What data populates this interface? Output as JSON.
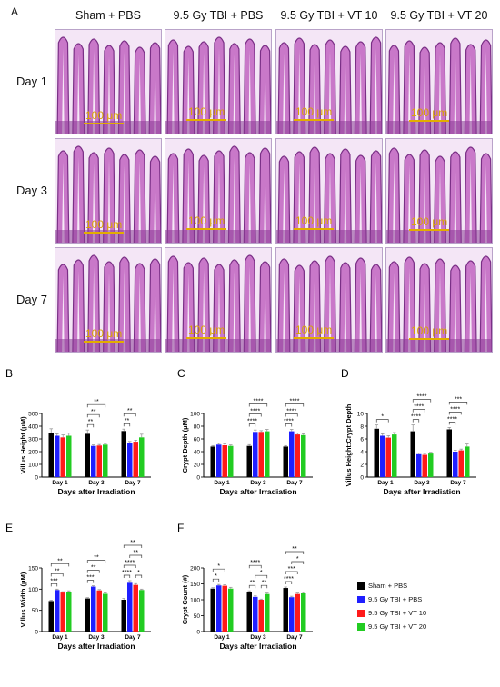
{
  "panel_a": {
    "letter": "A",
    "columns": [
      "Sham + PBS",
      "9.5 Gy TBI + PBS",
      "9.5 Gy TBI + VT 10",
      "9.5 Gy TBI + VT 20"
    ],
    "rows": [
      "Day 1",
      "Day 3",
      "Day 7"
    ],
    "scale_bar_label": "100 μm"
  },
  "legend": {
    "items": [
      {
        "label": "Sham + PBS",
        "color": "#000000"
      },
      {
        "label": "9.5 Gy TBI + PBS",
        "color": "#1f1fff"
      },
      {
        "label": "9.5 Gy TBI + VT 10",
        "color": "#ff1a1a"
      },
      {
        "label": "9.5 Gy TBI + VT 20",
        "color": "#22cc22"
      }
    ]
  },
  "chart_data": [
    {
      "letter": "B",
      "type": "bar",
      "categories": [
        "Day 1",
        "Day 3",
        "Day 7"
      ],
      "ylabel": "Villus Height (μM)",
      "xlabel": "Days after Irradiation",
      "ylim": [
        0,
        500
      ],
      "yticks": [
        0,
        100,
        200,
        300,
        400,
        500
      ],
      "values": [
        [
          345,
          325,
          312,
          325
        ],
        [
          340,
          245,
          248,
          255
        ],
        [
          362,
          270,
          278,
          312
        ]
      ],
      "errors": [
        [
          35,
          15,
          20,
          20
        ],
        [
          30,
          8,
          8,
          8
        ],
        [
          15,
          10,
          12,
          25
        ]
      ],
      "significance": [
        {
          "a": [
            1,
            0
          ],
          "b": [
            1,
            1
          ],
          "label": "**",
          "level": 0
        },
        {
          "a": [
            1,
            0
          ],
          "b": [
            1,
            2
          ],
          "label": "**",
          "level": 1
        },
        {
          "a": [
            1,
            0
          ],
          "b": [
            1,
            3
          ],
          "label": "**",
          "level": 2
        },
        {
          "a": [
            2,
            0
          ],
          "b": [
            2,
            1
          ],
          "label": "**",
          "level": 0
        },
        {
          "a": [
            2,
            0
          ],
          "b": [
            2,
            2
          ],
          "label": "**",
          "level": 1
        }
      ]
    },
    {
      "letter": "C",
      "type": "bar",
      "categories": [
        "Day 1",
        "Day 3",
        "Day 7"
      ],
      "ylabel": "Crypt Depth (μM)",
      "xlabel": "Days after Irradiation",
      "ylim": [
        0,
        100
      ],
      "yticks": [
        0,
        20,
        40,
        60,
        80,
        100
      ],
      "values": [
        [
          48,
          51,
          50,
          49
        ],
        [
          49,
          71,
          71,
          72
        ],
        [
          48,
          72,
          67,
          66
        ]
      ],
      "errors": [
        [
          1.5,
          2,
          2,
          1.5
        ],
        [
          2,
          3,
          2,
          3
        ],
        [
          1.5,
          3,
          2,
          2
        ]
      ],
      "significance": [
        {
          "a": [
            1,
            0
          ],
          "b": [
            1,
            1
          ],
          "label": "****",
          "level": 0
        },
        {
          "a": [
            1,
            0
          ],
          "b": [
            1,
            2
          ],
          "label": "****",
          "level": 1
        },
        {
          "a": [
            1,
            0
          ],
          "b": [
            1,
            3
          ],
          "label": "****",
          "level": 2
        },
        {
          "a": [
            2,
            0
          ],
          "b": [
            2,
            1
          ],
          "label": "****",
          "level": 0
        },
        {
          "a": [
            2,
            0
          ],
          "b": [
            2,
            2
          ],
          "label": "****",
          "level": 1
        },
        {
          "a": [
            2,
            0
          ],
          "b": [
            2,
            3
          ],
          "label": "****",
          "level": 2
        }
      ]
    },
    {
      "letter": "D",
      "type": "bar",
      "categories": [
        "Day 1",
        "Day 3",
        "Day 7"
      ],
      "ylabel": "Villus Height:Crypt Depth",
      "xlabel": "Days after Irradiation",
      "ylim": [
        0,
        10
      ],
      "yticks": [
        0,
        2,
        4,
        6,
        8,
        10
      ],
      "values": [
        [
          7.6,
          6.5,
          6.2,
          6.7
        ],
        [
          7.2,
          3.6,
          3.5,
          3.7
        ],
        [
          7.5,
          4.0,
          4.2,
          4.8
        ]
      ],
      "errors": [
        [
          0.6,
          0.3,
          0.3,
          0.3
        ],
        [
          1.0,
          0.2,
          0.2,
          0.2
        ],
        [
          0.3,
          0.2,
          0.2,
          0.4
        ]
      ],
      "significance": [
        {
          "a": [
            0,
            0
          ],
          "b": [
            0,
            2
          ],
          "label": "*",
          "level": 0
        },
        {
          "a": [
            1,
            0
          ],
          "b": [
            1,
            1
          ],
          "label": "****",
          "level": 0
        },
        {
          "a": [
            1,
            0
          ],
          "b": [
            1,
            2
          ],
          "label": "****",
          "level": 1
        },
        {
          "a": [
            1,
            0
          ],
          "b": [
            1,
            3
          ],
          "label": "****",
          "level": 2
        },
        {
          "a": [
            2,
            0
          ],
          "b": [
            2,
            1
          ],
          "label": "****",
          "level": 0
        },
        {
          "a": [
            2,
            0
          ],
          "b": [
            2,
            2
          ],
          "label": "****",
          "level": 1
        },
        {
          "a": [
            2,
            0
          ],
          "b": [
            2,
            3
          ],
          "label": "***",
          "level": 2
        }
      ]
    },
    {
      "letter": "E",
      "type": "bar",
      "categories": [
        "Day 1",
        "Day 3",
        "Day 7"
      ],
      "ylabel": "Villus Width (μM)",
      "xlabel": "Days after Irradiation",
      "ylim": [
        0,
        150
      ],
      "yticks": [
        0,
        50,
        100,
        150
      ],
      "values": [
        [
          72,
          98,
          92,
          93
        ],
        [
          78,
          106,
          97,
          89
        ],
        [
          75,
          115,
          110,
          98
        ]
      ],
      "errors": [
        [
          2,
          2,
          2,
          3
        ],
        [
          2,
          2,
          2,
          2
        ],
        [
          3,
          5,
          3,
          2
        ]
      ],
      "significance": [
        {
          "a": [
            0,
            0
          ],
          "b": [
            0,
            1
          ],
          "label": "***",
          "level": 0
        },
        {
          "a": [
            0,
            0
          ],
          "b": [
            0,
            2
          ],
          "label": "**",
          "level": 1
        },
        {
          "a": [
            0,
            0
          ],
          "b": [
            0,
            3
          ],
          "label": "**",
          "level": 2
        },
        {
          "a": [
            1,
            0
          ],
          "b": [
            1,
            1
          ],
          "label": "***",
          "level": 0
        },
        {
          "a": [
            1,
            0
          ],
          "b": [
            1,
            2
          ],
          "label": "**",
          "level": 1
        },
        {
          "a": [
            1,
            0
          ],
          "b": [
            1,
            3
          ],
          "label": "**",
          "level": 2
        },
        {
          "a": [
            2,
            0
          ],
          "b": [
            2,
            1
          ],
          "label": "****",
          "level": 0
        },
        {
          "a": [
            2,
            2
          ],
          "b": [
            2,
            3
          ],
          "label": "*",
          "level": 0
        },
        {
          "a": [
            2,
            0
          ],
          "b": [
            2,
            2
          ],
          "label": "****",
          "level": 1
        },
        {
          "a": [
            2,
            1
          ],
          "b": [
            2,
            3
          ],
          "label": "**",
          "level": 2
        },
        {
          "a": [
            2,
            0
          ],
          "b": [
            2,
            3
          ],
          "label": "**",
          "level": 3
        }
      ]
    },
    {
      "letter": "F",
      "type": "bar",
      "categories": [
        "Day 1",
        "Day 3",
        "Day 7"
      ],
      "ylabel": "Crypt Count (#)",
      "xlabel": "Days after Irradiation",
      "ylim": [
        0,
        200
      ],
      "yticks": [
        0,
        50,
        100,
        150,
        200
      ],
      "values": [
        [
          135,
          145,
          144,
          135
        ],
        [
          125,
          109,
          100,
          118
        ],
        [
          137,
          108,
          118,
          120
        ]
      ],
      "errors": [
        [
          3,
          3,
          3,
          4
        ],
        [
          3,
          3,
          2,
          3
        ],
        [
          3,
          3,
          3,
          3
        ]
      ],
      "significance": [
        {
          "a": [
            0,
            0
          ],
          "b": [
            0,
            1
          ],
          "label": "*",
          "level": 0
        },
        {
          "a": [
            0,
            0
          ],
          "b": [
            0,
            2
          ],
          "label": "*",
          "level": 1
        },
        {
          "a": [
            1,
            0
          ],
          "b": [
            1,
            1
          ],
          "label": "**",
          "level": 0
        },
        {
          "a": [
            1,
            2
          ],
          "b": [
            1,
            3
          ],
          "label": "**",
          "level": 0
        },
        {
          "a": [
            1,
            1
          ],
          "b": [
            1,
            3
          ],
          "label": "*",
          "level": 1
        },
        {
          "a": [
            1,
            0
          ],
          "b": [
            1,
            2
          ],
          "label": "****",
          "level": 2
        },
        {
          "a": [
            2,
            0
          ],
          "b": [
            2,
            1
          ],
          "label": "****",
          "level": 0
        },
        {
          "a": [
            2,
            0
          ],
          "b": [
            2,
            2
          ],
          "label": "***",
          "level": 1
        },
        {
          "a": [
            2,
            1
          ],
          "b": [
            2,
            3
          ],
          "label": "*",
          "level": 2
        },
        {
          "a": [
            2,
            0
          ],
          "b": [
            2,
            3
          ],
          "label": "**",
          "level": 3
        }
      ]
    }
  ]
}
